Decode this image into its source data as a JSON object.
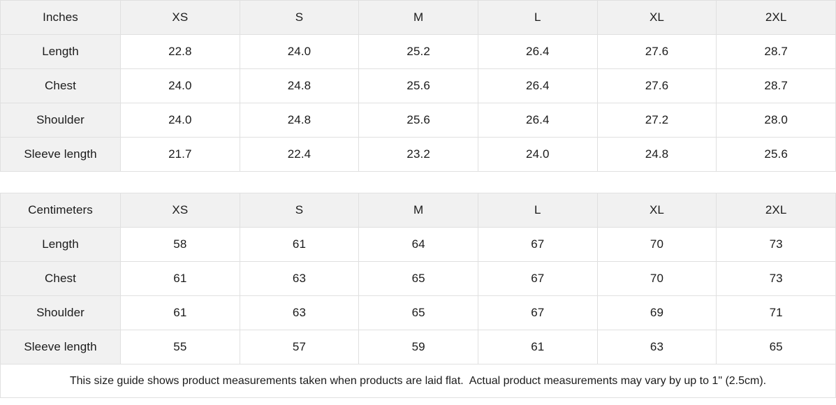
{
  "colors": {
    "header_bg": "#f1f1f1",
    "border": "#e0e0e0",
    "text": "#1b1b1b"
  },
  "tables": [
    {
      "unit_label": "Inches",
      "sizes": [
        "XS",
        "S",
        "M",
        "L",
        "XL",
        "2XL"
      ],
      "rows": [
        {
          "label": "Length",
          "values": [
            "22.8",
            "24.0",
            "25.2",
            "26.4",
            "27.6",
            "28.7"
          ]
        },
        {
          "label": "Chest",
          "values": [
            "24.0",
            "24.8",
            "25.6",
            "26.4",
            "27.6",
            "28.7"
          ]
        },
        {
          "label": "Shoulder",
          "values": [
            "24.0",
            "24.8",
            "25.6",
            "26.4",
            "27.2",
            "28.0"
          ]
        },
        {
          "label": "Sleeve length",
          "values": [
            "21.7",
            "22.4",
            "23.2",
            "24.0",
            "24.8",
            "25.6"
          ]
        }
      ]
    },
    {
      "unit_label": "Centimeters",
      "sizes": [
        "XS",
        "S",
        "M",
        "L",
        "XL",
        "2XL"
      ],
      "rows": [
        {
          "label": "Length",
          "values": [
            "58",
            "61",
            "64",
            "67",
            "70",
            "73"
          ]
        },
        {
          "label": "Chest",
          "values": [
            "61",
            "63",
            "65",
            "67",
            "70",
            "73"
          ]
        },
        {
          "label": "Shoulder",
          "values": [
            "61",
            "63",
            "65",
            "67",
            "69",
            "71"
          ]
        },
        {
          "label": "Sleeve length",
          "values": [
            "55",
            "57",
            "59",
            "61",
            "63",
            "65"
          ]
        }
      ]
    }
  ],
  "footer": {
    "note": "This size guide shows product measurements taken when products are laid flat.  Actual product measurements may vary by up to 1\" (2.5cm)."
  }
}
